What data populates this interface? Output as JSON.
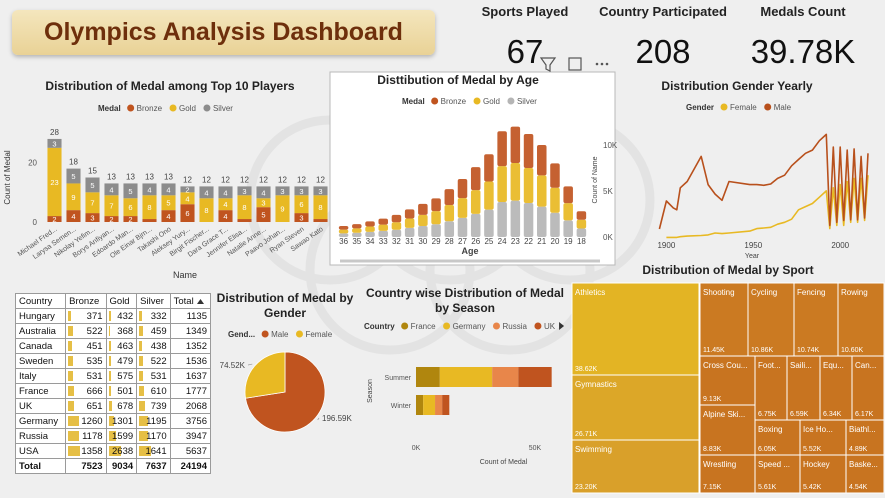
{
  "header": {
    "title": "Olympics Analysis Dashboard"
  },
  "kpis": [
    {
      "label": "Sports Played",
      "value": 67
    },
    {
      "label": "Country Participated",
      "value": 208
    },
    {
      "label": "Medals Count",
      "value": "39.78K"
    }
  ],
  "chart_data": [
    {
      "type": "bar",
      "stacked": true,
      "title": "Distribution of Medal among Top 10 Players",
      "legend_title": "Medal",
      "x_label": "Name",
      "y_label": "Count of Medal",
      "categories": [
        "Michael Fred...",
        "Larysa Semen...",
        "Nikolay Yefim...",
        "Borys Anfiyan...",
        "Edoardo Man...",
        "Ole Einar Bjrn...",
        "Takashi Ono",
        "Aleksey Yury...",
        "Birgit Fischer...",
        "Dara Grace T...",
        "Jennifer Elisa...",
        "Natalie Anne...",
        "Paavo Johan...",
        "Ryan Steven",
        "Sawao Kato"
      ],
      "series": [
        {
          "name": "Bronze",
          "color": "#c0541f",
          "values": [
            2,
            4,
            3,
            2,
            2,
            1,
            4,
            6,
            0,
            4,
            1,
            5,
            0,
            3,
            1
          ]
        },
        {
          "name": "Gold",
          "color": "#e8b923",
          "values": [
            23,
            9,
            7,
            7,
            6,
            8,
            5,
            4,
            8,
            4,
            8,
            3,
            9,
            6,
            8
          ]
        },
        {
          "name": "Silver",
          "color": "#8c8c8c",
          "values": [
            3,
            5,
            5,
            4,
            5,
            4,
            4,
            2,
            4,
            4,
            3,
            4,
            3,
            3,
            3
          ]
        }
      ],
      "totals": [
        28,
        18,
        15,
        13,
        13,
        13,
        13,
        12,
        12,
        12,
        12,
        12,
        12,
        12,
        12
      ],
      "ylim": [
        0,
        30
      ],
      "yticks": [
        0,
        20
      ]
    },
    {
      "type": "ribbon",
      "title": "Disttibution of Medal by Age",
      "legend_title": "Medal",
      "x_label": "Age",
      "y_label": "Count of Name",
      "categories": [
        36,
        35,
        34,
        33,
        32,
        31,
        30,
        29,
        28,
        27,
        26,
        25,
        24,
        23,
        22,
        21,
        20,
        19,
        18
      ],
      "series": [
        {
          "name": "Bronze",
          "color": "#c0541f",
          "values": [
            400,
            460,
            560,
            660,
            790,
            990,
            1190,
            1390,
            1720,
            2080,
            2510,
            2970,
            3800,
            3960,
            3700,
            3300,
            2640,
            1820,
            920
          ]
        },
        {
          "name": "Gold",
          "color": "#e8b923",
          "values": [
            400,
            480,
            580,
            680,
            820,
            1020,
            1220,
            1430,
            1770,
            2140,
            2580,
            3060,
            3900,
            4080,
            3800,
            3400,
            2720,
            1870,
            960
          ]
        },
        {
          "name": "Silver",
          "color": "#b5b5b5",
          "values": [
            400,
            460,
            560,
            660,
            790,
            990,
            1190,
            1380,
            1710,
            2080,
            2510,
            2970,
            3800,
            3960,
            3700,
            3300,
            2640,
            1810,
            920
          ]
        }
      ],
      "ylim": [
        0,
        12000
      ],
      "yticks": [
        {
          "value": 0,
          "label": "0K"
        },
        {
          "value": 5000,
          "label": "5K"
        },
        {
          "value": 10000,
          "label": "10K"
        }
      ]
    },
    {
      "type": "line",
      "title": "Distribution Gender Yearly",
      "legend_title": "Gender",
      "x_label": "Year",
      "x": [
        1896,
        1900,
        1904,
        1906,
        1908,
        1912,
        1920,
        1924,
        1928,
        1932,
        1936,
        1948,
        1952,
        1956,
        1960,
        1964,
        1968,
        1972,
        1976,
        1980,
        1984,
        1988,
        1992,
        1994,
        1996,
        1998,
        2000,
        2002,
        2004,
        2006,
        2008,
        2010,
        2012,
        2014,
        2016
      ],
      "series": [
        {
          "name": "Female",
          "color": "#e8b923",
          "values": [
            null,
            10,
            10,
            10,
            20,
            30,
            40,
            50,
            80,
            70,
            80,
            110,
            150,
            160,
            170,
            220,
            250,
            300,
            450,
            500,
            550,
            650,
            750,
            150,
            800,
            200,
            850,
            200,
            900,
            250,
            950,
            250,
            950,
            280,
            1000
          ]
        },
        {
          "name": "Male",
          "color": "#b8501c",
          "values": [
            143,
            590,
            480,
            450,
            800,
            900,
            1300,
            850,
            700,
            600,
            900,
            850,
            850,
            840,
            860,
            950,
            1000,
            1150,
            1250,
            1350,
            1400,
            1550,
            1650,
            200,
            1450,
            250,
            1450,
            280,
            1400,
            290,
            1420,
            290,
            1300,
            320,
            1350
          ]
        }
      ],
      "xlim": [
        1890,
        2020
      ],
      "xticks": [
        1900,
        1950,
        2000
      ],
      "ylim": [
        0,
        1800
      ]
    },
    {
      "type": "pie",
      "title": "Distribution of Medal by Gender",
      "legend_title": "Gend...",
      "categories": [
        "Male",
        "Female"
      ],
      "values": [
        196590,
        74520
      ],
      "value_labels": [
        "196.59K",
        "74.52K"
      ],
      "colors": [
        "#c0541f",
        "#e8b923"
      ]
    },
    {
      "type": "bar",
      "orientation": "horizontal",
      "stacked": true,
      "title": "Country wise Distribution of Medal by Season",
      "legend_title": "Country",
      "x_label": "Count of Medal",
      "y_label": "Season",
      "categories": [
        "Summer",
        "Winter"
      ],
      "series": [
        {
          "name": "France",
          "color": "#b0860e",
          "values": [
            10000,
            3000
          ]
        },
        {
          "name": "Germany",
          "color": "#e8b923",
          "values": [
            22000,
            5000
          ]
        },
        {
          "name": "Russia",
          "color": "#e8864a",
          "values": [
            11000,
            3000
          ]
        },
        {
          "name": "UK",
          "color": "#c0541f",
          "values": [
            14000,
            3000
          ]
        }
      ],
      "xlim": [
        0,
        60000
      ],
      "xticks": [
        {
          "value": 0,
          "label": "0K"
        },
        {
          "value": 50000,
          "label": "50K"
        }
      ]
    },
    {
      "type": "treemap",
      "title": "Distribution of Medal by Sport",
      "categories": [
        "Athletics",
        "Gymnastics",
        "Swimming",
        "Shooting",
        "Cycling",
        "Fencing",
        "Rowing",
        "Cross Cou...",
        "Foot...",
        "Saili...",
        "Equ...",
        "Can...",
        "Alpine Ski...",
        "Boxing",
        "Ice Ho...",
        "Biathl...",
        "Wrestling",
        "Speed ...",
        "Hockey",
        "Baske..."
      ],
      "values": [
        38620,
        26710,
        23200,
        11450,
        10860,
        10740,
        10600,
        9130,
        6750,
        6590,
        6340,
        6170,
        8830,
        6050,
        5520,
        4890,
        7150,
        5610,
        5420,
        4540
      ],
      "value_labels": [
        "38.62K",
        "26.71K",
        "23.20K",
        "11.45K",
        "10.86K",
        "10.74K",
        "10.60K",
        "9.13K",
        "6.75K",
        "6.59K",
        "6.34K",
        "6.17K",
        "8.83K",
        "6.05K",
        "5.52K",
        "4.89K",
        "7.15K",
        "5.61K",
        "5.42K",
        "4.54K"
      ],
      "colors": [
        "#e3b424",
        "#dca728",
        "#d9a02a",
        "#cb7a22",
        "#cb7a22",
        "#cb7a22",
        "#cb7a22",
        "#c87420",
        "#c87420",
        "#c87420",
        "#c87420",
        "#c87420",
        "#c87420",
        "#c87420",
        "#c87420",
        "#c87420",
        "#c87420",
        "#c87420",
        "#c87420",
        "#c87420"
      ]
    }
  ],
  "table": {
    "columns": [
      "Country",
      "Bronze",
      "Gold",
      "Silver",
      "Total"
    ],
    "rows": [
      [
        "Hungary",
        371,
        432,
        332,
        1135
      ],
      [
        "Australia",
        522,
        368,
        459,
        1349
      ],
      [
        "Canada",
        451,
        463,
        438,
        1352
      ],
      [
        "Sweden",
        535,
        479,
        522,
        1536
      ],
      [
        "Italy",
        531,
        575,
        531,
        1637
      ],
      [
        "France",
        666,
        501,
        610,
        1777
      ],
      [
        "UK",
        651,
        678,
        739,
        2068
      ],
      [
        "Germany",
        1260,
        1301,
        1195,
        3756
      ],
      [
        "Russia",
        1178,
        1599,
        1170,
        3947
      ],
      [
        "USA",
        1358,
        2638,
        1641,
        5637
      ]
    ],
    "total": [
      "Total",
      7523,
      9034,
      7637,
      24194
    ]
  }
}
